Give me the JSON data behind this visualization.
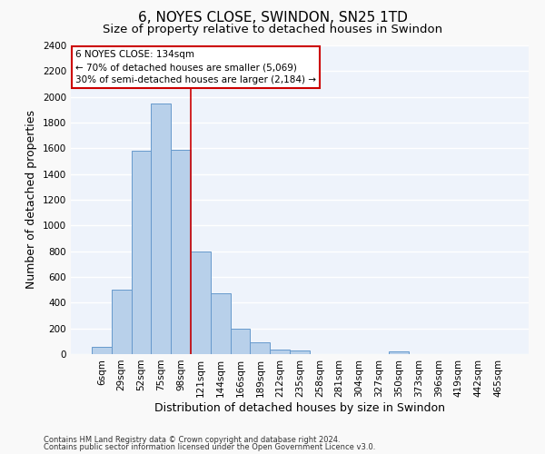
{
  "title": "6, NOYES CLOSE, SWINDON, SN25 1TD",
  "subtitle": "Size of property relative to detached houses in Swindon",
  "xlabel": "Distribution of detached houses by size in Swindon",
  "ylabel": "Number of detached properties",
  "categories": [
    "6sqm",
    "29sqm",
    "52sqm",
    "75sqm",
    "98sqm",
    "121sqm",
    "144sqm",
    "166sqm",
    "189sqm",
    "212sqm",
    "235sqm",
    "258sqm",
    "281sqm",
    "304sqm",
    "327sqm",
    "350sqm",
    "373sqm",
    "396sqm",
    "419sqm",
    "442sqm",
    "465sqm"
  ],
  "bar_heights": [
    60,
    500,
    1580,
    1950,
    1590,
    800,
    475,
    200,
    95,
    35,
    28,
    0,
    0,
    0,
    0,
    22,
    0,
    0,
    0,
    0,
    0
  ],
  "bar_color": "#b8d0ea",
  "bar_edge_color": "#6699cc",
  "ylim": [
    0,
    2400
  ],
  "yticks": [
    0,
    200,
    400,
    600,
    800,
    1000,
    1200,
    1400,
    1600,
    1800,
    2000,
    2200,
    2400
  ],
  "vline_pos": 4.5,
  "vline_color": "#cc0000",
  "annotation_text": "6 NOYES CLOSE: 134sqm\n← 70% of detached houses are smaller (5,069)\n30% of semi-detached houses are larger (2,184) →",
  "annotation_box_color": "#ffffff",
  "annotation_box_edge": "#cc0000",
  "footer1": "Contains HM Land Registry data © Crown copyright and database right 2024.",
  "footer2": "Contains public sector information licensed under the Open Government Licence v3.0.",
  "fig_facecolor": "#f9f9f9",
  "plot_background": "#eef3fb",
  "grid_color": "#ffffff",
  "title_fontsize": 11,
  "subtitle_fontsize": 9.5,
  "xlabel_fontsize": 9,
  "ylabel_fontsize": 9,
  "tick_fontsize": 7.5,
  "annotation_fontsize": 7.5,
  "footer_fontsize": 6
}
